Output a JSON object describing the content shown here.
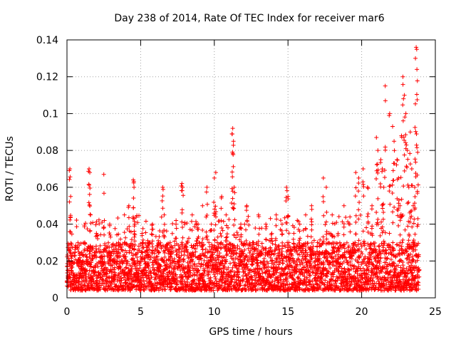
{
  "chart_data": {
    "type": "scatter",
    "title": "Day 238 of 2014, Rate Of TEC Index for receiver mar6",
    "xlabel": "GPS time / hours",
    "ylabel": "ROTI / TECUs",
    "xlim": [
      0,
      25
    ],
    "ylim": [
      0,
      0.14
    ],
    "x_ticks": [
      0,
      5,
      10,
      15,
      20,
      25
    ],
    "y_ticks": [
      0,
      0.02,
      0.04,
      0.06,
      0.08,
      0.1,
      0.12,
      0.14
    ],
    "x_tick_labels": [
      "0",
      "5",
      "10",
      "15",
      "20",
      "25"
    ],
    "y_tick_labels": [
      "0",
      "0.02",
      "0.04",
      "0.06",
      "0.08",
      "0.1",
      "0.12",
      "0.14"
    ],
    "grid": true,
    "marker": "+",
    "color": "#ff0000",
    "series": [
      {
        "name": "ROTI",
        "x": [
          0.05,
          0.2,
          0.25,
          0.3,
          0.5,
          0.8,
          1.0,
          1.2,
          1.5,
          1.55,
          1.6,
          1.65,
          2.0,
          2.5,
          2.9,
          3.2,
          3.5,
          3.9,
          4.2,
          4.5,
          4.55,
          4.6,
          4.8,
          5.1,
          5.5,
          5.8,
          6.2,
          6.5,
          6.6,
          7.0,
          7.4,
          7.8,
          7.85,
          8.2,
          8.5,
          8.9,
          9.2,
          9.5,
          9.8,
          10.0,
          10.1,
          10.2,
          10.5,
          10.8,
          11.2,
          11.25,
          11.3,
          11.35,
          11.8,
          12.2,
          12.6,
          13.0,
          13.5,
          13.9,
          14.2,
          14.6,
          14.9,
          15.0,
          15.4,
          15.8,
          16.2,
          16.6,
          17.0,
          17.4,
          17.6,
          18.0,
          18.4,
          18.8,
          19.2,
          19.6,
          19.8,
          20.1,
          20.4,
          20.7,
          21.0,
          21.1,
          21.3,
          21.4,
          21.5,
          21.6,
          21.9,
          22.1,
          22.2,
          22.4,
          22.5,
          22.6,
          22.7,
          22.8,
          22.9,
          23.0,
          23.1,
          23.2,
          23.3,
          23.4,
          23.5,
          23.6,
          23.65,
          23.7,
          23.75,
          23.8
        ],
        "y": [
          0.015,
          0.07,
          0.055,
          0.02,
          0.012,
          0.025,
          0.018,
          0.03,
          0.07,
          0.068,
          0.045,
          0.02,
          0.035,
          0.067,
          0.04,
          0.025,
          0.03,
          0.045,
          0.05,
          0.064,
          0.06,
          0.04,
          0.02,
          0.035,
          0.03,
          0.04,
          0.025,
          0.06,
          0.045,
          0.03,
          0.04,
          0.062,
          0.06,
          0.03,
          0.045,
          0.04,
          0.05,
          0.06,
          0.04,
          0.065,
          0.068,
          0.03,
          0.055,
          0.045,
          0.089,
          0.092,
          0.085,
          0.06,
          0.04,
          0.05,
          0.03,
          0.045,
          0.04,
          0.035,
          0.045,
          0.04,
          0.06,
          0.055,
          0.035,
          0.04,
          0.045,
          0.05,
          0.03,
          0.065,
          0.06,
          0.045,
          0.035,
          0.05,
          0.04,
          0.068,
          0.065,
          0.07,
          0.06,
          0.05,
          0.087,
          0.08,
          0.075,
          0.07,
          0.06,
          0.115,
          0.1,
          0.093,
          0.085,
          0.075,
          0.065,
          0.05,
          0.088,
          0.12,
          0.11,
          0.1,
          0.08,
          0.06,
          0.09,
          0.07,
          0.05,
          0.06,
          0.13,
          0.136,
          0.124,
          0.079
        ],
        "baseline": {
          "x_start": 0,
          "x_end": 23.9,
          "x_step": 0.02,
          "y_min": 0.004,
          "y_max": 0.03,
          "spike_fraction": 0.12,
          "spike_max": 0.045
        }
      }
    ]
  }
}
